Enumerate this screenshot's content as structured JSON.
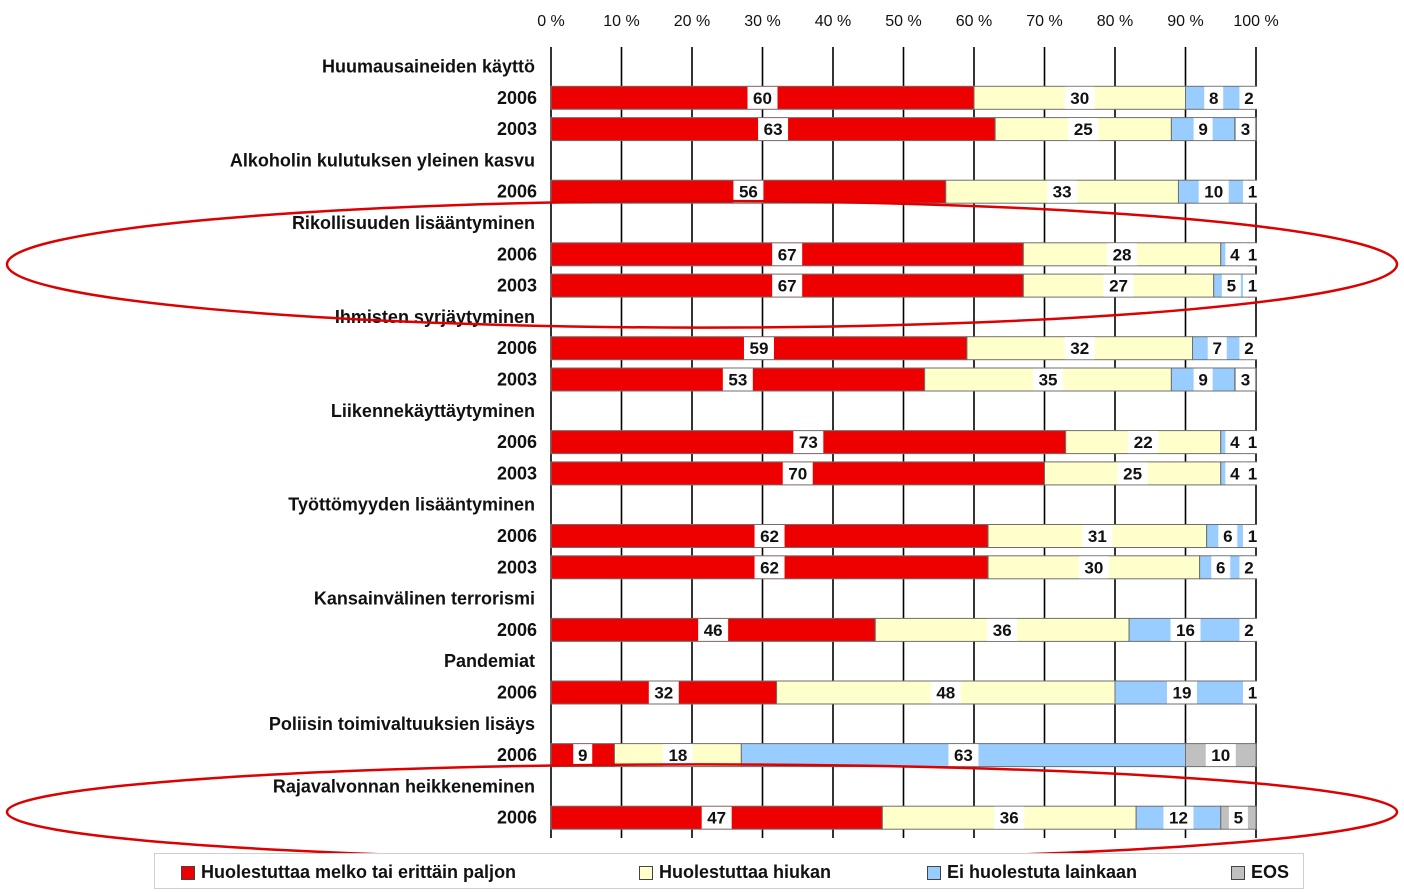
{
  "chart_data": {
    "type": "bar",
    "orientation": "horizontal",
    "stacked": "percent",
    "x_ticks": [
      "0 %",
      "10 %",
      "20 %",
      "30 %",
      "40 %",
      "50 %",
      "60 %",
      "70 %",
      "80 %",
      "90 %",
      "100 %"
    ],
    "xlim": [
      0,
      100
    ],
    "grid": true,
    "legend_position": "bottom",
    "series": [
      {
        "name": "Huolestuttaa melko tai erittäin paljon",
        "color": "#ee0000"
      },
      {
        "name": "Huolestuttaa hiukan",
        "color": "#ffffcc"
      },
      {
        "name": "Ei huolestuta lainkaan",
        "color": "#99ccff"
      },
      {
        "name": "EOS",
        "color": "#c0c0c0"
      }
    ],
    "groups": [
      {
        "label": "Huumausaineiden käyttö",
        "rows": [
          {
            "year": "2006",
            "values": [
              60,
              30,
              8,
              2
            ]
          },
          {
            "year": "2003",
            "values": [
              63,
              25,
              9,
              3
            ]
          }
        ]
      },
      {
        "label": "Alkoholin kulutuksen yleinen kasvu",
        "rows": [
          {
            "year": "2006",
            "values": [
              56,
              33,
              10,
              1
            ]
          }
        ]
      },
      {
        "label": "Rikollisuuden lisääntyminen",
        "rows": [
          {
            "year": "2006",
            "values": [
              67,
              28,
              4,
              1
            ]
          },
          {
            "year": "2003",
            "values": [
              67,
              27,
              5,
              1
            ]
          }
        ]
      },
      {
        "label": "Ihmisten syrjäytyminen",
        "rows": [
          {
            "year": "2006",
            "values": [
              59,
              32,
              7,
              2
            ]
          },
          {
            "year": "2003",
            "values": [
              53,
              35,
              9,
              3
            ]
          }
        ]
      },
      {
        "label": "Liikennekäyttäytyminen",
        "rows": [
          {
            "year": "2006",
            "values": [
              73,
              22,
              4,
              1
            ]
          },
          {
            "year": "2003",
            "values": [
              70,
              25,
              4,
              1
            ]
          }
        ]
      },
      {
        "label": "Työttömyyden lisääntyminen",
        "rows": [
          {
            "year": "2006",
            "values": [
              62,
              31,
              6,
              1
            ]
          },
          {
            "year": "2003",
            "values": [
              62,
              30,
              6,
              2
            ]
          }
        ]
      },
      {
        "label": "Kansainvälinen terrorismi",
        "rows": [
          {
            "year": "2006",
            "values": [
              46,
              36,
              16,
              2
            ]
          }
        ]
      },
      {
        "label": "Pandemiat",
        "rows": [
          {
            "year": "2006",
            "values": [
              32,
              48,
              19,
              1
            ]
          }
        ]
      },
      {
        "label": "Poliisin toimivaltuuksien lisäys",
        "rows": [
          {
            "year": "2006",
            "values": [
              9,
              18,
              63,
              10
            ]
          }
        ]
      },
      {
        "label": "Rajavalvonnan heikkeneminen",
        "rows": [
          {
            "year": "2006",
            "values": [
              47,
              36,
              12,
              5
            ]
          }
        ]
      }
    ],
    "annotations": [
      {
        "type": "ellipse",
        "color": "#dd0000",
        "encloses_group": "Rikollisuuden lisääntyminen"
      },
      {
        "type": "ellipse",
        "color": "#dd0000",
        "encloses_group": "Rajavalvonnan heikkeneminen"
      }
    ]
  }
}
